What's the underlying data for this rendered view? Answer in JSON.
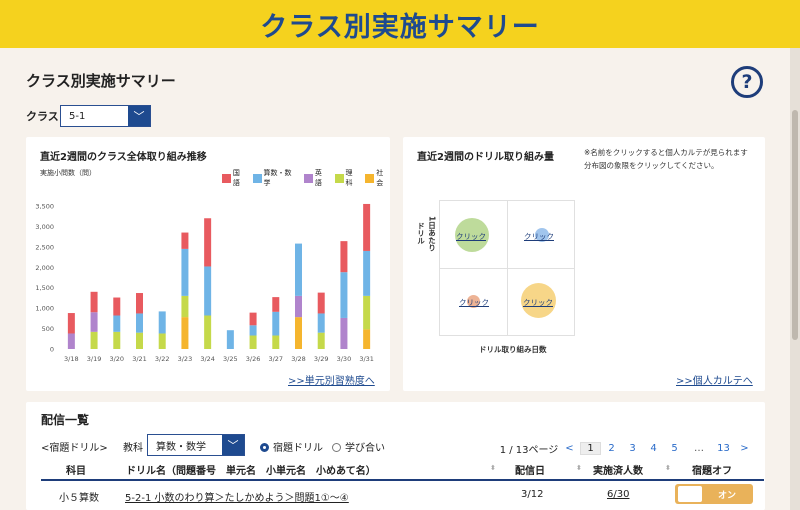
{
  "banner": {
    "title": "クラス別実施サマリー"
  },
  "page": {
    "title": "クラス別実施サマリー",
    "help_icon": "question-icon"
  },
  "class_select": {
    "label": "クラス",
    "value": "5-1"
  },
  "chart_card": {
    "title": "直近2週間のクラス全体取り組み推移",
    "link": ">>単元別習熟度へ"
  },
  "chart_data": {
    "type": "bar",
    "stacked": true,
    "ylabel": "実施小問数（問）",
    "ylim": [
      0,
      3500
    ],
    "yticks": [
      "0",
      "500",
      "1,000",
      "1,500",
      "2,000",
      "2,500",
      "3,000",
      "3,500"
    ],
    "categories": [
      "3/18",
      "3/19",
      "3/20",
      "3/21",
      "3/22",
      "3/23",
      "3/24",
      "3/25",
      "3/26",
      "3/27",
      "3/28",
      "3/29",
      "3/30",
      "3/31"
    ],
    "series": [
      {
        "name": "社会",
        "color": "#f5b52e",
        "values": [
          0,
          0,
          0,
          0,
          0,
          780,
          0,
          0,
          0,
          0,
          780,
          0,
          0,
          480
        ]
      },
      {
        "name": "理科",
        "color": "#c5d94a",
        "values": [
          0,
          420,
          420,
          400,
          380,
          520,
          820,
          0,
          330,
          330,
          0,
          400,
          0,
          820
        ]
      },
      {
        "name": "英語",
        "color": "#b084cc",
        "values": [
          380,
          480,
          0,
          0,
          0,
          0,
          0,
          0,
          0,
          0,
          520,
          0,
          760,
          0
        ]
      },
      {
        "name": "算数・数学",
        "color": "#6fb4e6",
        "values": [
          0,
          0,
          400,
          470,
          540,
          1150,
          1200,
          460,
          250,
          580,
          1280,
          470,
          1120,
          1100
        ]
      },
      {
        "name": "国語",
        "color": "#e85a5f",
        "values": [
          500,
          500,
          440,
          500,
          0,
          400,
          1180,
          0,
          310,
          360,
          0,
          510,
          760,
          1150
        ]
      }
    ]
  },
  "scatter_card": {
    "title": "直近2週間のドリル取り組み量",
    "note_line1": "※名前をクリックすると個人カルテが見られます",
    "note_line2": "分布図の象限をクリックしてください。",
    "y_axis_label": "ドリ日あ実施小問平均",
    "y_axis_col1": "ドリル",
    "y_axis_col2": "1日あたり",
    "x_axis_label": "ドリル取り組み日数",
    "quadrants": [
      {
        "label": "クリック",
        "color": "#a8cf7a"
      },
      {
        "label": "クリック",
        "color": "#8ab7e8"
      },
      {
        "label": "クリック",
        "color": "#e8a07a"
      },
      {
        "label": "クリック",
        "color": "#f5cc6a"
      }
    ],
    "link": ">>個人カルテへ"
  },
  "delivery": {
    "title": "配信一覧",
    "drill_type": "<宿題ドリル>",
    "subject_label": "教科",
    "subject_value": "算数・数学",
    "radio_homework": "宿題ドリル",
    "radio_learning": "学び合い",
    "pager": {
      "info": "1 / 13ページ",
      "prev": "<",
      "pages": [
        "1",
        "2",
        "3",
        "4",
        "5"
      ],
      "ellipsis": "…",
      "last": "13",
      "next": ">"
    },
    "columns": {
      "subject": "科目",
      "drill": "ドリル名（問題番号　単元名　小単元名　小めあて名）",
      "date": "配信日",
      "done": "実施済人数",
      "off": "宿題オフ"
    },
    "rows": [
      {
        "subject": "小５算数",
        "drill": "5-2-1 小数のわり算＞たしかめよう＞問題1①～④",
        "date": "3/12",
        "done": "6/30",
        "toggle": "オン"
      }
    ]
  }
}
